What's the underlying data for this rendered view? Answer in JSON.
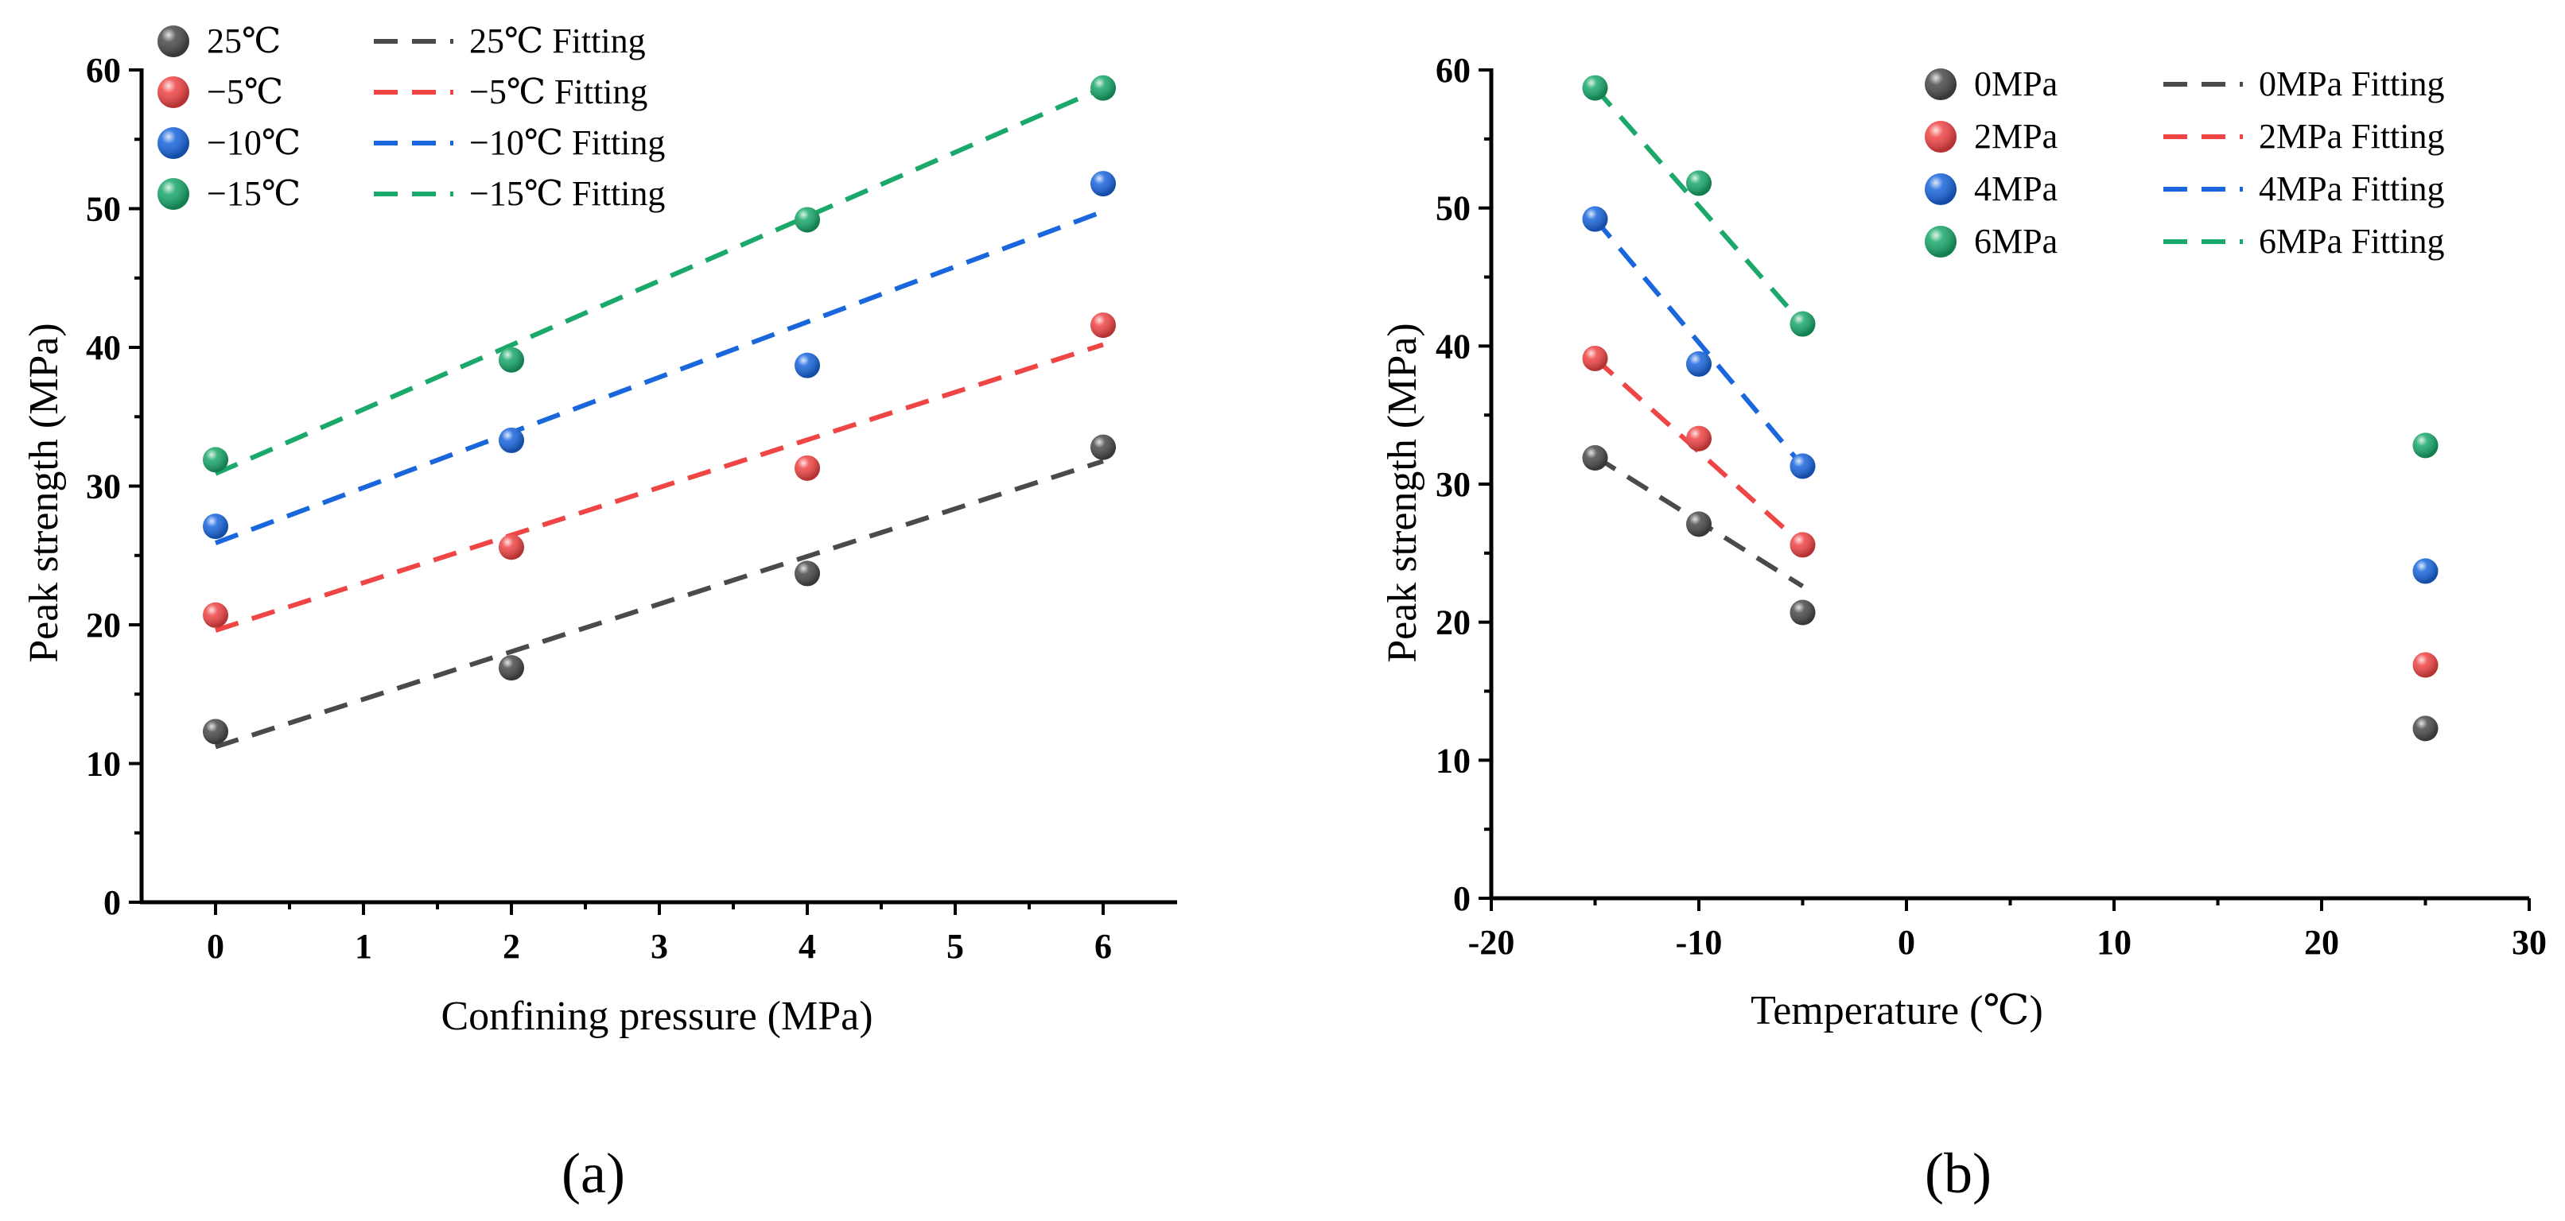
{
  "chart_data": [
    {
      "type": "scatter",
      "panel_label": "(a)",
      "xlabel": "Confining pressure (MPa)",
      "ylabel": "Peak strength (MPa)",
      "xlim": [
        -0.5,
        6.5
      ],
      "ylim": [
        0,
        60
      ],
      "xticks": [
        0,
        1,
        2,
        3,
        4,
        5,
        6
      ],
      "yticks": [
        0,
        10,
        20,
        30,
        40,
        50,
        60
      ],
      "legend_position": "top-left",
      "x": [
        0,
        2,
        4,
        6
      ],
      "series": [
        {
          "name": "25℃",
          "fit_name": "25℃ Fitting",
          "color": "#4a4a4a",
          "values": [
            12.3,
            16.9,
            23.7,
            32.8
          ],
          "fit": [
            11.2,
            31.8
          ]
        },
        {
          "name": "−5℃",
          "fit_name": "−5℃ Fitting",
          "color": "#f04545",
          "values": [
            20.7,
            25.6,
            31.3,
            41.6
          ],
          "fit": [
            19.6,
            40.2
          ]
        },
        {
          "name": "−10℃",
          "fit_name": "−10℃ Fitting",
          "color": "#1a66dd",
          "values": [
            27.1,
            33.3,
            38.7,
            51.8
          ],
          "fit": [
            25.9,
            49.8
          ]
        },
        {
          "name": "−15℃",
          "fit_name": "−15℃ Fitting",
          "color": "#1aa86b",
          "values": [
            31.9,
            39.1,
            49.2,
            58.7
          ],
          "fit": [
            30.9,
            58.7
          ]
        }
      ]
    },
    {
      "type": "scatter",
      "panel_label": "(b)",
      "xlabel": "Temperature (℃)",
      "ylabel": "Peak strength (MPa)",
      "xlim": [
        -20,
        30
      ],
      "ylim": [
        0,
        60
      ],
      "xticks": [
        -20,
        -10,
        0,
        10,
        20,
        30
      ],
      "yticks": [
        0,
        10,
        20,
        30,
        40,
        50,
        60
      ],
      "legend_position": "top-right",
      "x": [
        -15,
        -10,
        -5,
        25
      ],
      "fit_x": [
        -15,
        -5
      ],
      "series": [
        {
          "name": "0MPa",
          "fit_name": "0MPa Fitting",
          "color": "#4a4a4a",
          "values": [
            31.9,
            27.1,
            20.7,
            12.3
          ],
          "fit": [
            32.0,
            22.6
          ]
        },
        {
          "name": "2MPa",
          "fit_name": "2MPa Fitting",
          "color": "#f04545",
          "values": [
            39.1,
            33.3,
            25.6,
            16.9
          ],
          "fit": [
            39.1,
            25.6
          ]
        },
        {
          "name": "4MPa",
          "fit_name": "4MPa Fitting",
          "color": "#1a66dd",
          "values": [
            49.2,
            38.7,
            31.3,
            23.7
          ],
          "fit": [
            49.2,
            31.3
          ]
        },
        {
          "name": "6MPa",
          "fit_name": "6MPa Fitting",
          "color": "#1aa86b",
          "values": [
            58.7,
            51.8,
            41.6,
            32.8
          ],
          "fit": [
            58.7,
            41.6
          ]
        }
      ]
    }
  ]
}
